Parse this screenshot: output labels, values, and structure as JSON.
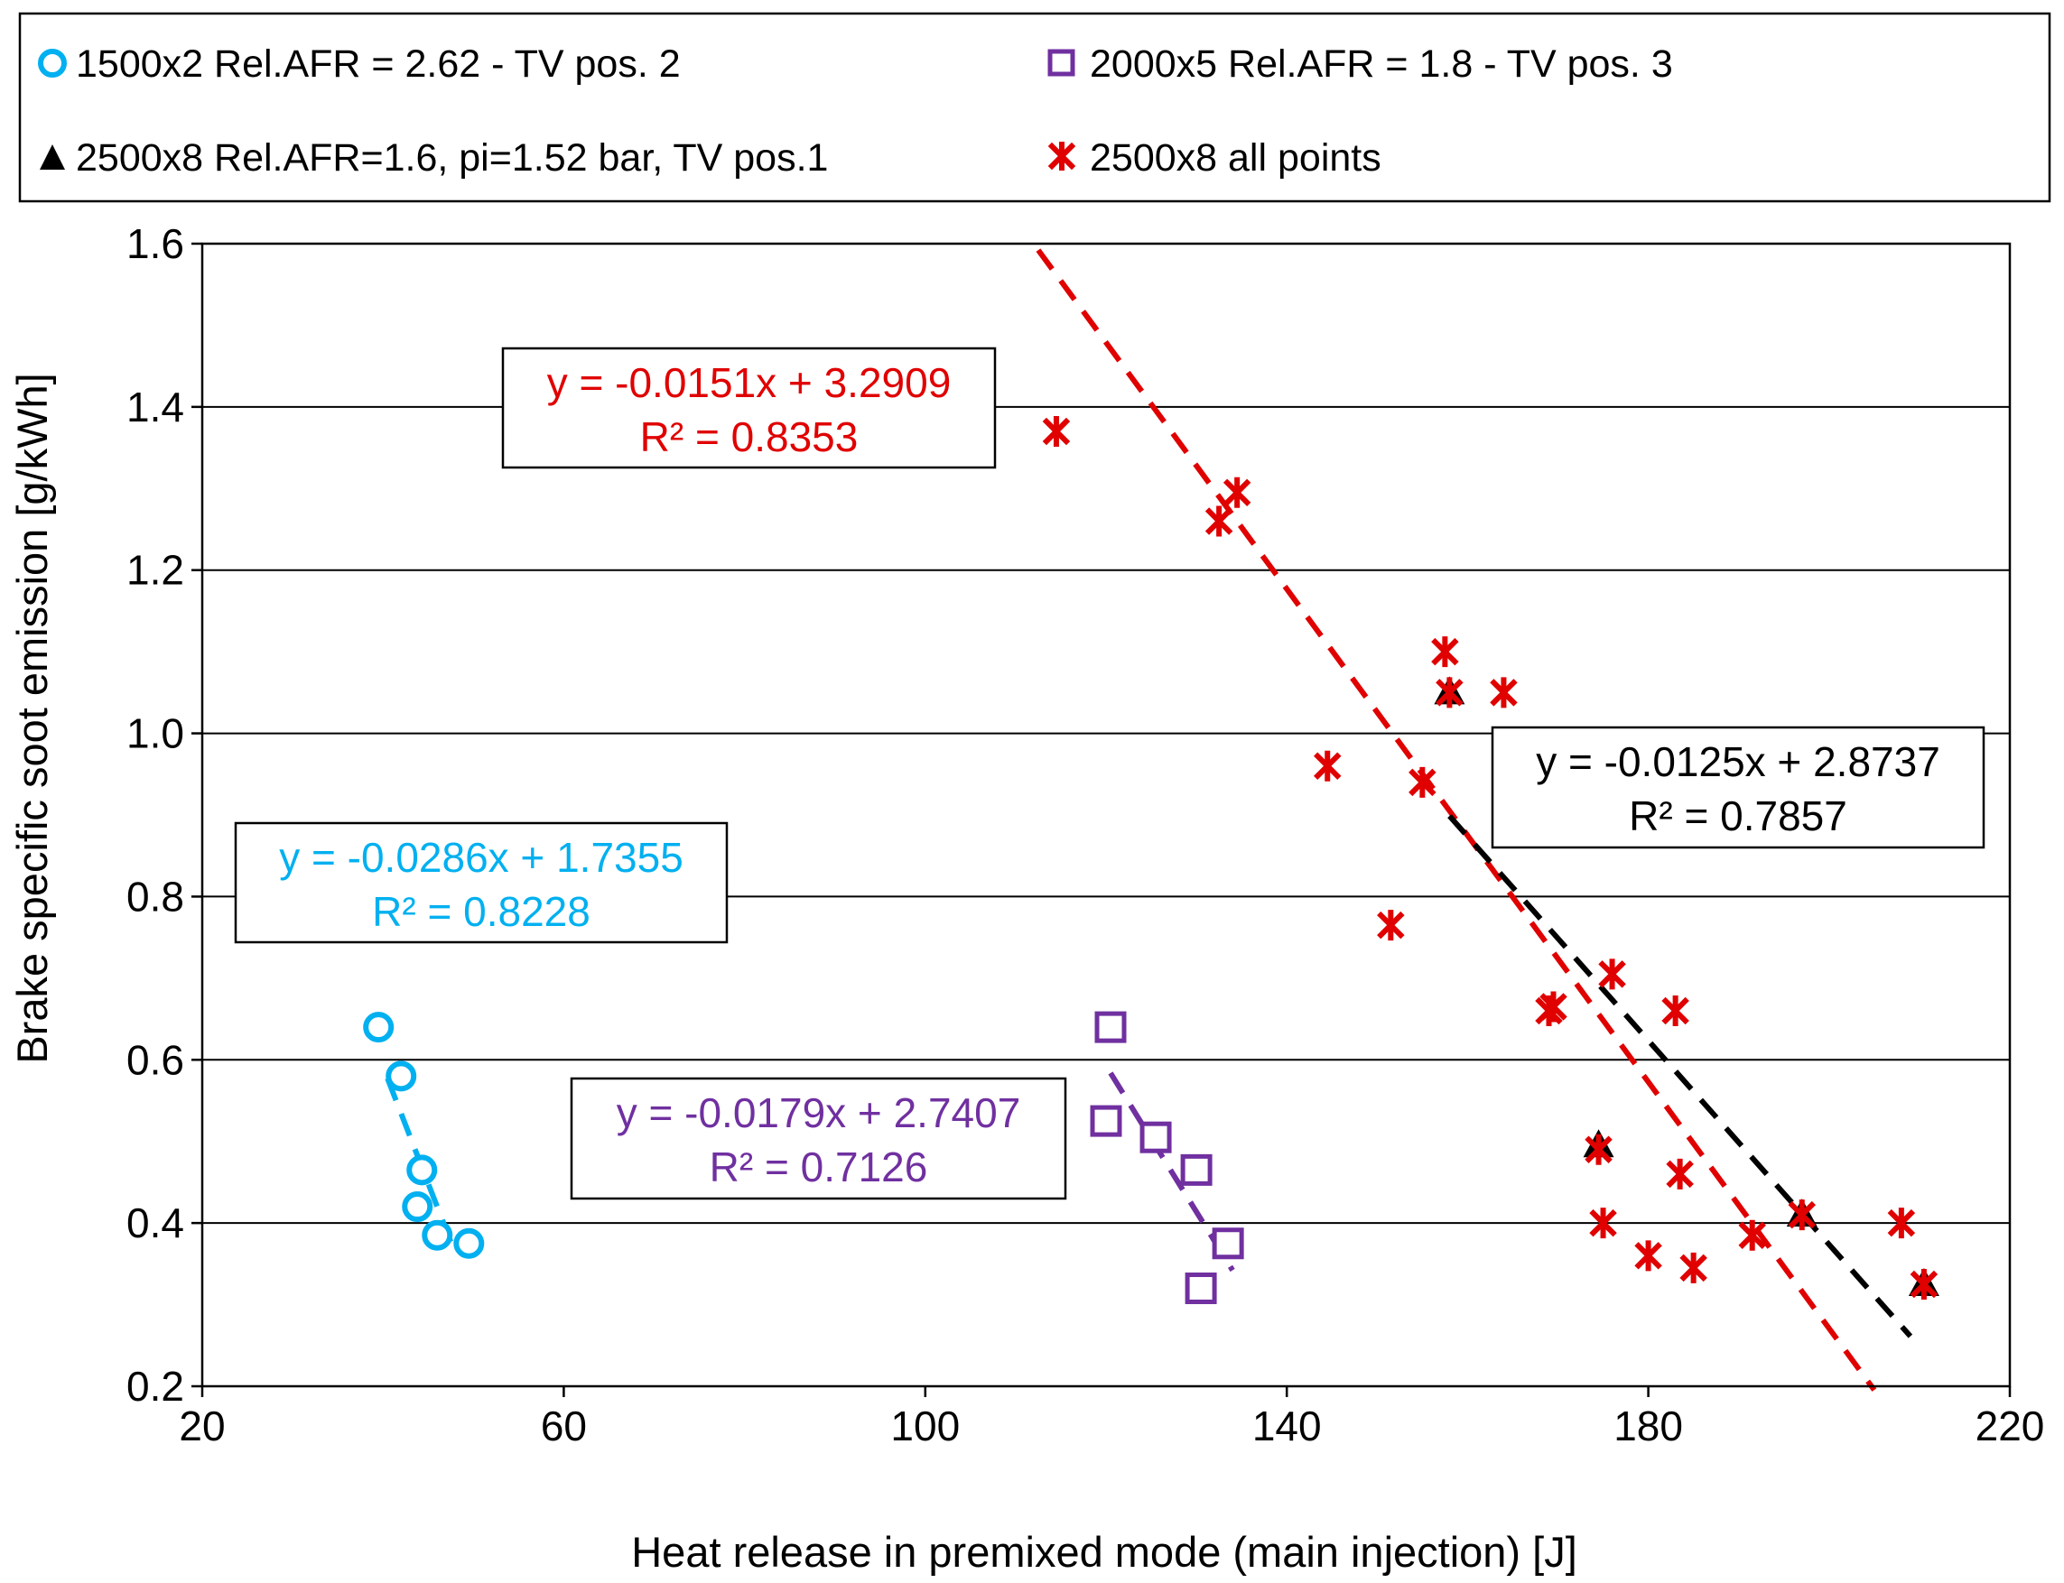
{
  "chart_data": {
    "type": "scatter",
    "xlabel": "Heat release in premixed mode (main injection) [J]",
    "ylabel": "Brake specific soot emission [g/kWh]",
    "xlim": [
      20,
      220
    ],
    "ylim": [
      0.2,
      1.6
    ],
    "x_ticks": [
      20,
      60,
      100,
      140,
      180,
      220
    ],
    "y_ticks": [
      0.2,
      0.4,
      0.6,
      0.8,
      1.0,
      1.2,
      1.4,
      1.6
    ],
    "x_tick_labels": [
      "20",
      "60",
      "100",
      "140",
      "180",
      "220"
    ],
    "y_tick_labels": [
      "0.2",
      "0.4",
      "0.6",
      "0.8",
      "1.0",
      "1.2",
      "1.4",
      "1.6"
    ],
    "grid": "horizontal",
    "legend_position": "top",
    "series": [
      {
        "name": "1500x2 Rel.AFR = 2.62 - TV pos. 2",
        "marker": "circle",
        "color": "#00b0f0",
        "points": [
          [
            39.5,
            0.64
          ],
          [
            42,
            0.58
          ],
          [
            44.3,
            0.465
          ],
          [
            43.8,
            0.42
          ],
          [
            46,
            0.385
          ],
          [
            49.5,
            0.375
          ]
        ],
        "trendline": {
          "x_range": [
            40.5,
            48
          ],
          "slope": -0.0286,
          "intercept": 1.7355,
          "equation": "y = -0.0286x + 1.7355",
          "r2": "R² = 0.8228"
        }
      },
      {
        "name": "2000x5 Rel.AFR = 1.8 - TV pos. 3",
        "marker": "square",
        "color": "#7030a0",
        "points": [
          [
            120.5,
            0.64
          ],
          [
            120,
            0.525
          ],
          [
            125.5,
            0.505
          ],
          [
            130,
            0.465
          ],
          [
            133.5,
            0.375
          ],
          [
            130.5,
            0.32
          ]
        ],
        "trendline": {
          "x_range": [
            120.5,
            134
          ],
          "slope": -0.0179,
          "intercept": 2.7407,
          "equation": "y = -0.0179x + 2.7407",
          "r2": "R² = 0.7126"
        }
      },
      {
        "name": "2500x8 Rel.AFR=1.6, pi=1.52 bar, TV pos.1",
        "marker": "triangle",
        "color": "#000000",
        "points": [
          [
            158,
            1.05
          ],
          [
            174.5,
            0.495
          ],
          [
            197,
            0.41
          ],
          [
            210.5,
            0.325
          ]
        ],
        "trendline": {
          "x_range": [
            158,
            209
          ],
          "slope": -0.0125,
          "intercept": 2.8737,
          "equation": "y = -0.0125x + 2.8737",
          "r2": "R² = 0.7857"
        }
      },
      {
        "name": "2500x8 all points",
        "marker": "star",
        "color": "#e00000",
        "points": [
          [
            114.5,
            1.37
          ],
          [
            132.5,
            1.26
          ],
          [
            134.5,
            1.295
          ],
          [
            144.5,
            0.96
          ],
          [
            151.5,
            0.765
          ],
          [
            155,
            0.94
          ],
          [
            157.5,
            1.1
          ],
          [
            158,
            1.05
          ],
          [
            164,
            1.05
          ],
          [
            169,
            0.66
          ],
          [
            169.5,
            0.665
          ],
          [
            174.5,
            0.49
          ],
          [
            175,
            0.4
          ],
          [
            176,
            0.705
          ],
          [
            180,
            0.36
          ],
          [
            183,
            0.66
          ],
          [
            183.5,
            0.46
          ],
          [
            185,
            0.345
          ],
          [
            191.5,
            0.385
          ],
          [
            197,
            0.41
          ],
          [
            208,
            0.4
          ],
          [
            210.5,
            0.325
          ]
        ],
        "trendline": {
          "x_range": [
            112.5,
            205
          ],
          "slope": -0.0151,
          "intercept": 3.2909,
          "equation": "y = -0.0151x + 3.2909",
          "r2": "R² = 0.8353"
        }
      }
    ]
  }
}
